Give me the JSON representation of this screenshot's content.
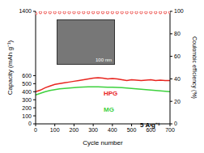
{
  "chart_data": {
    "type": "line",
    "x": [
      0,
      25,
      50,
      75,
      100,
      125,
      150,
      175,
      200,
      225,
      250,
      275,
      300,
      325,
      350,
      375,
      400,
      425,
      450,
      475,
      500,
      525,
      550,
      575,
      600,
      625,
      650,
      675,
      700
    ],
    "xlabel": "Cycle number",
    "ylabel": "Capacity (mAh g⁻¹)",
    "y2label": "Coulombic efficiency (%)",
    "xlim": [
      0,
      700
    ],
    "xticks": [
      0,
      100,
      200,
      300,
      400,
      500,
      600,
      700
    ],
    "ylim": [
      0,
      1400
    ],
    "yticks": [
      0,
      100,
      200,
      300,
      400,
      500,
      600,
      1400
    ],
    "y2lim": [
      0,
      100
    ],
    "y2ticks": [
      0,
      20,
      40,
      60,
      80,
      100
    ],
    "series": [
      {
        "name": "HPG",
        "color": "#e8251f",
        "values": [
          400,
          420,
          450,
          470,
          490,
          500,
          510,
          520,
          530,
          540,
          550,
          560,
          570,
          575,
          570,
          560,
          565,
          560,
          550,
          540,
          550,
          545,
          540,
          545,
          550,
          540,
          545,
          540,
          540
        ]
      },
      {
        "name": "MG",
        "color": "#3dd13d",
        "values": [
          360,
          380,
          400,
          415,
          425,
          435,
          440,
          445,
          450,
          455,
          458,
          460,
          462,
          460,
          458,
          455,
          455,
          452,
          450,
          445,
          440,
          435,
          430,
          425,
          420,
          415,
          410,
          405,
          400
        ]
      },
      {
        "name": "Coulombic efficiency",
        "color": "#e8251f",
        "axis": "y2",
        "marker": "circle",
        "line_style": "none",
        "values": [
          98,
          99,
          99,
          99,
          99,
          99,
          99,
          99,
          99,
          99,
          99,
          99,
          99,
          99,
          99,
          99,
          99,
          99,
          99,
          99,
          99,
          99,
          99,
          99,
          99,
          99,
          99,
          99,
          99
        ]
      }
    ],
    "annotations": [
      {
        "text": "HPG"
      },
      {
        "text": "MG"
      },
      {
        "text": "5 A g⁻¹"
      },
      {
        "text": "100 nm"
      }
    ]
  }
}
